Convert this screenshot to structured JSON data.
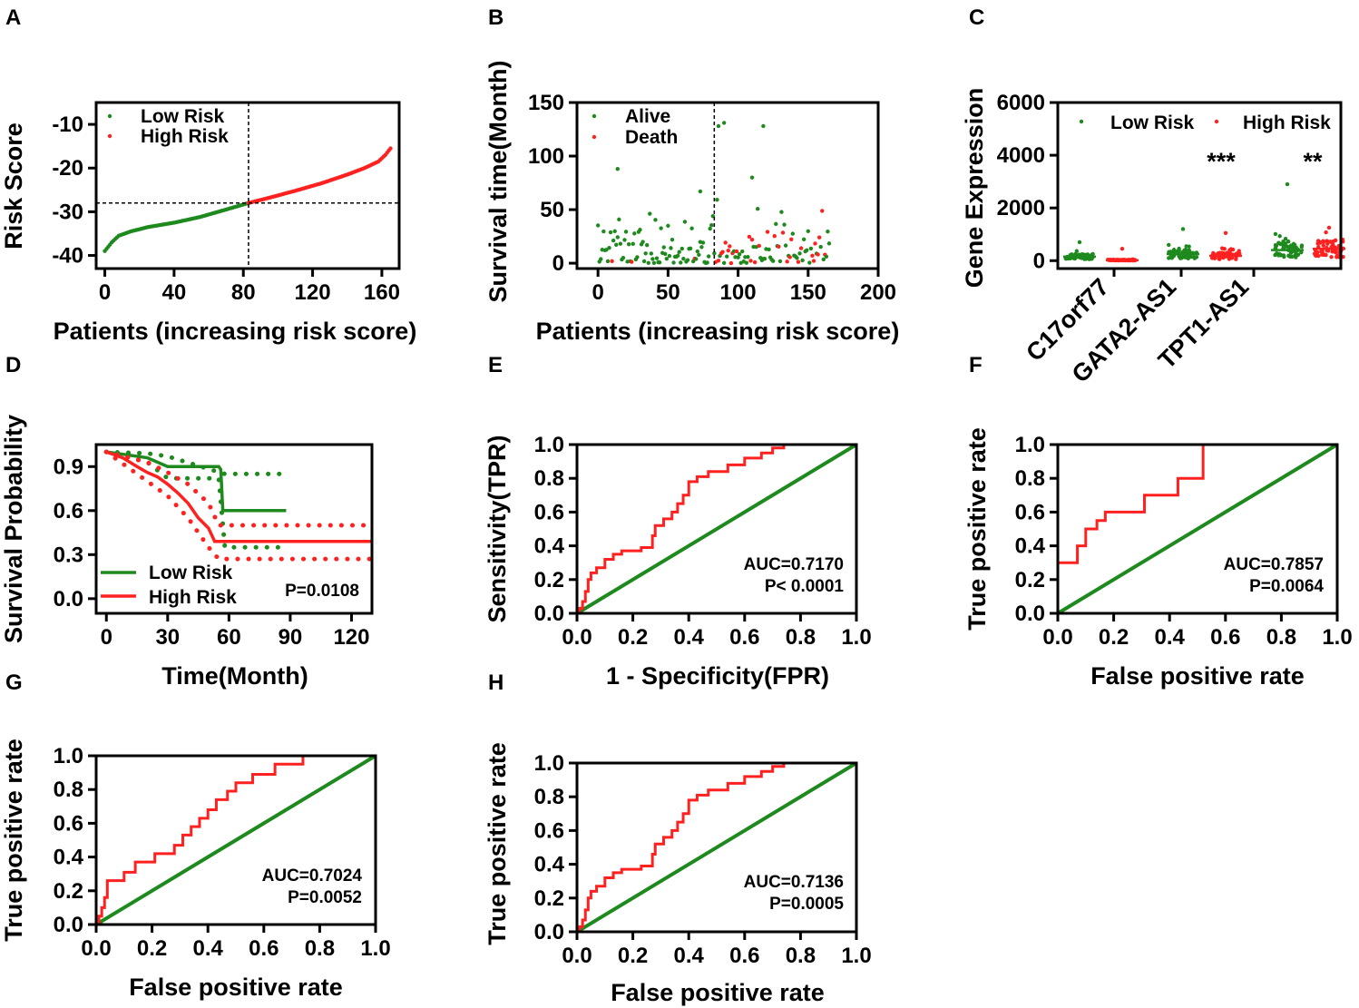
{
  "colors": {
    "low": "#1e8a1e",
    "high": "#ff2020",
    "green_line": "#1e8a1e",
    "axis": "#000000"
  },
  "chart_data": [
    {
      "panel": "A",
      "type": "scatter",
      "xlabel": "Patients (increasing risk score)",
      "ylabel": "Risk Score",
      "xlim": [
        -5,
        170
      ],
      "ylim": [
        -43,
        -5
      ],
      "xticks": [
        0,
        40,
        80,
        120,
        160
      ],
      "yticks": [
        -40,
        -30,
        -20,
        -10
      ],
      "cutoff_x": 83,
      "cutoff_y": -28,
      "legend": [
        {
          "label": "Low Risk",
          "color": "#1e8a1e"
        },
        {
          "label": "High Risk",
          "color": "#ff2020"
        }
      ],
      "curve": [
        [
          0,
          -39
        ],
        [
          4,
          -37
        ],
        [
          8,
          -35.5
        ],
        [
          15,
          -34.5
        ],
        [
          25,
          -33.5
        ],
        [
          40,
          -32.5
        ],
        [
          55,
          -31.2
        ],
        [
          70,
          -29.5
        ],
        [
          83,
          -28
        ],
        [
          95,
          -26.8
        ],
        [
          110,
          -25.2
        ],
        [
          125,
          -23.5
        ],
        [
          140,
          -21.5
        ],
        [
          150,
          -20
        ],
        [
          158,
          -18.5
        ],
        [
          162,
          -17
        ],
        [
          165,
          -15.5
        ]
      ],
      "n_points": 165
    },
    {
      "panel": "B",
      "type": "scatter",
      "xlabel": "Patients (increasing risk score)",
      "ylabel": "Survival time(Month)",
      "xlim": [
        -15,
        200
      ],
      "ylim": [
        -5,
        150
      ],
      "xticks": [
        0,
        50,
        100,
        150,
        200
      ],
      "yticks": [
        0,
        50,
        100,
        150
      ],
      "cutoff_x": 83,
      "legend": [
        {
          "label": "Alive",
          "color": "#1e8a1e"
        },
        {
          "label": "Death",
          "color": "#ff2020"
        }
      ],
      "outliers": [
        {
          "x": 14,
          "y": 88,
          "group": "Alive"
        },
        {
          "x": 73,
          "y": 67,
          "group": "Alive"
        },
        {
          "x": 86,
          "y": 128,
          "group": "Alive"
        },
        {
          "x": 90,
          "y": 131,
          "group": "Alive"
        },
        {
          "x": 110,
          "y": 80,
          "group": "Alive"
        },
        {
          "x": 118,
          "y": 128,
          "group": "Alive"
        }
      ],
      "n_points": 165
    },
    {
      "panel": "C",
      "type": "scatter",
      "ylabel": "Gene Expression",
      "ylim": [
        -300,
        6000
      ],
      "yticks": [
        0,
        2000,
        4000,
        6000
      ],
      "categories": [
        "C17orf77",
        "GATA2-AS1",
        "TPT1-AS1"
      ],
      "legend": [
        {
          "label": "Low Risk",
          "color": "#1e8a1e"
        },
        {
          "label": "High Risk",
          "color": "#ff2020"
        }
      ],
      "significance": [
        {
          "category": "GATA2-AS1",
          "label": "***"
        },
        {
          "category": "TPT1-AS1",
          "label": "**"
        }
      ],
      "series": [
        {
          "name": "Low Risk",
          "category": "C17orf77",
          "median": 150,
          "max": 700
        },
        {
          "name": "High Risk",
          "category": "C17orf77",
          "median": 20,
          "max": 450
        },
        {
          "name": "Low Risk",
          "category": "GATA2-AS1",
          "median": 250,
          "max": 1200
        },
        {
          "name": "High Risk",
          "category": "GATA2-AS1",
          "median": 180,
          "max": 1050
        },
        {
          "name": "Low Risk",
          "category": "TPT1-AS1",
          "median": 400,
          "max": 2900
        },
        {
          "name": "High Risk",
          "category": "TPT1-AS1",
          "median": 450,
          "max": 1250
        }
      ]
    },
    {
      "panel": "D",
      "type": "line",
      "xlabel": "Time(Month)",
      "ylabel": "Survival Probability",
      "xlim": [
        -5,
        130
      ],
      "ylim": [
        -0.1,
        1.05
      ],
      "xticks": [
        0,
        30,
        60,
        90,
        120
      ],
      "yticks": [
        0.0,
        0.3,
        0.6,
        0.9
      ],
      "pvalue": "P=0.0108",
      "series": [
        {
          "name": "Low Risk",
          "color": "#1e8a1e",
          "x": [
            0,
            10,
            20,
            25,
            30,
            55,
            56,
            57,
            58,
            88
          ],
          "y": [
            1.0,
            0.98,
            0.96,
            0.93,
            0.9,
            0.9,
            0.88,
            0.6,
            0.6,
            0.6
          ],
          "ci_upper_x": [
            0,
            20,
            30,
            58,
            88
          ],
          "ci_upper_y": [
            1.0,
            0.99,
            0.97,
            0.85,
            0.85
          ],
          "ci_lower_x": [
            0,
            20,
            30,
            55,
            58,
            85
          ],
          "ci_lower_y": [
            1.0,
            0.93,
            0.82,
            0.82,
            0.35,
            0.35
          ]
        },
        {
          "name": "High Risk",
          "color": "#ff2020",
          "x": [
            0,
            8,
            15,
            20,
            25,
            30,
            35,
            40,
            45,
            50,
            53,
            130
          ],
          "y": [
            1.0,
            0.96,
            0.9,
            0.86,
            0.83,
            0.78,
            0.72,
            0.65,
            0.55,
            0.48,
            0.39,
            0.39
          ],
          "ci_upper_x": [
            0,
            20,
            30,
            40,
            50,
            55,
            130
          ],
          "ci_upper_y": [
            1.0,
            0.93,
            0.86,
            0.78,
            0.65,
            0.5,
            0.5
          ],
          "ci_lower_x": [
            0,
            20,
            30,
            40,
            50,
            55,
            130
          ],
          "ci_lower_y": [
            1.0,
            0.8,
            0.7,
            0.55,
            0.35,
            0.27,
            0.27
          ]
        }
      ]
    },
    {
      "panel": "E",
      "type": "line",
      "xlabel": "1 - Specificity(FPR)",
      "ylabel": "Sensitivity(TPR)",
      "xlim": [
        0,
        1
      ],
      "ylim": [
        0,
        1
      ],
      "ticks": [
        0.0,
        0.2,
        0.4,
        0.6,
        0.8,
        1.0
      ],
      "auc": "AUC=0.7170",
      "pvalue": "P< 0.0001",
      "roc": [
        [
          0,
          0
        ],
        [
          0.01,
          0
        ],
        [
          0.01,
          0.03
        ],
        [
          0.02,
          0.03
        ],
        [
          0.02,
          0.07
        ],
        [
          0.03,
          0.07
        ],
        [
          0.03,
          0.13
        ],
        [
          0.04,
          0.13
        ],
        [
          0.04,
          0.2
        ],
        [
          0.05,
          0.2
        ],
        [
          0.05,
          0.24
        ],
        [
          0.07,
          0.24
        ],
        [
          0.07,
          0.27
        ],
        [
          0.1,
          0.27
        ],
        [
          0.1,
          0.32
        ],
        [
          0.13,
          0.32
        ],
        [
          0.13,
          0.35
        ],
        [
          0.16,
          0.35
        ],
        [
          0.16,
          0.37
        ],
        [
          0.23,
          0.37
        ],
        [
          0.23,
          0.39
        ],
        [
          0.27,
          0.39
        ],
        [
          0.27,
          0.46
        ],
        [
          0.28,
          0.46
        ],
        [
          0.28,
          0.52
        ],
        [
          0.31,
          0.52
        ],
        [
          0.31,
          0.56
        ],
        [
          0.34,
          0.56
        ],
        [
          0.34,
          0.6
        ],
        [
          0.36,
          0.6
        ],
        [
          0.36,
          0.65
        ],
        [
          0.38,
          0.65
        ],
        [
          0.38,
          0.7
        ],
        [
          0.4,
          0.7
        ],
        [
          0.4,
          0.78
        ],
        [
          0.43,
          0.78
        ],
        [
          0.43,
          0.81
        ],
        [
          0.47,
          0.81
        ],
        [
          0.47,
          0.84
        ],
        [
          0.54,
          0.84
        ],
        [
          0.54,
          0.88
        ],
        [
          0.6,
          0.88
        ],
        [
          0.6,
          0.92
        ],
        [
          0.66,
          0.92
        ],
        [
          0.66,
          0.95
        ],
        [
          0.7,
          0.95
        ],
        [
          0.7,
          0.98
        ],
        [
          0.74,
          0.98
        ],
        [
          0.74,
          1.0
        ],
        [
          1,
          1
        ]
      ]
    },
    {
      "panel": "F",
      "type": "line",
      "xlabel": "False positive rate",
      "ylabel": "True positive rate",
      "xlim": [
        0,
        1
      ],
      "ylim": [
        0,
        1
      ],
      "ticks": [
        0.0,
        0.2,
        0.4,
        0.6,
        0.8,
        1.0
      ],
      "auc": "AUC=0.7857",
      "pvalue": "P=0.0064",
      "roc": [
        [
          0,
          0
        ],
        [
          0,
          0.3
        ],
        [
          0.07,
          0.3
        ],
        [
          0.07,
          0.4
        ],
        [
          0.1,
          0.4
        ],
        [
          0.1,
          0.5
        ],
        [
          0.14,
          0.5
        ],
        [
          0.14,
          0.55
        ],
        [
          0.17,
          0.55
        ],
        [
          0.17,
          0.6
        ],
        [
          0.31,
          0.6
        ],
        [
          0.31,
          0.7
        ],
        [
          0.43,
          0.7
        ],
        [
          0.43,
          0.8
        ],
        [
          0.52,
          0.8
        ],
        [
          0.52,
          1.0
        ],
        [
          1,
          1
        ]
      ]
    },
    {
      "panel": "G",
      "type": "line",
      "xlabel": "False positive rate",
      "ylabel": "True positive rate",
      "xlim": [
        0,
        1
      ],
      "ylim": [
        0,
        1
      ],
      "ticks": [
        0.0,
        0.2,
        0.4,
        0.6,
        0.8,
        1.0
      ],
      "auc": "AUC=0.7024",
      "pvalue": "P=0.0052",
      "roc": [
        [
          0,
          0
        ],
        [
          0.01,
          0
        ],
        [
          0.01,
          0.05
        ],
        [
          0.02,
          0.05
        ],
        [
          0.02,
          0.1
        ],
        [
          0.03,
          0.1
        ],
        [
          0.03,
          0.16
        ],
        [
          0.04,
          0.16
        ],
        [
          0.04,
          0.26
        ],
        [
          0.1,
          0.26
        ],
        [
          0.1,
          0.31
        ],
        [
          0.14,
          0.31
        ],
        [
          0.14,
          0.37
        ],
        [
          0.21,
          0.37
        ],
        [
          0.21,
          0.42
        ],
        [
          0.28,
          0.42
        ],
        [
          0.28,
          0.47
        ],
        [
          0.31,
          0.47
        ],
        [
          0.31,
          0.53
        ],
        [
          0.34,
          0.53
        ],
        [
          0.34,
          0.58
        ],
        [
          0.37,
          0.58
        ],
        [
          0.37,
          0.63
        ],
        [
          0.4,
          0.63
        ],
        [
          0.4,
          0.68
        ],
        [
          0.43,
          0.68
        ],
        [
          0.43,
          0.74
        ],
        [
          0.47,
          0.74
        ],
        [
          0.47,
          0.79
        ],
        [
          0.5,
          0.79
        ],
        [
          0.5,
          0.84
        ],
        [
          0.56,
          0.84
        ],
        [
          0.56,
          0.89
        ],
        [
          0.64,
          0.89
        ],
        [
          0.64,
          0.95
        ],
        [
          0.74,
          0.95
        ],
        [
          0.74,
          1.0
        ],
        [
          1,
          1
        ]
      ]
    },
    {
      "panel": "H",
      "type": "line",
      "xlabel": "False positive rate",
      "ylabel": "True positive rate",
      "xlim": [
        0,
        1
      ],
      "ylim": [
        0,
        1
      ],
      "ticks": [
        0.0,
        0.2,
        0.4,
        0.6,
        0.8,
        1.0
      ],
      "auc": "AUC=0.7136",
      "pvalue": "P=0.0005",
      "roc": [
        [
          0,
          0
        ],
        [
          0.01,
          0
        ],
        [
          0.01,
          0.03
        ],
        [
          0.02,
          0.03
        ],
        [
          0.02,
          0.07
        ],
        [
          0.03,
          0.07
        ],
        [
          0.03,
          0.13
        ],
        [
          0.04,
          0.13
        ],
        [
          0.04,
          0.2
        ],
        [
          0.05,
          0.2
        ],
        [
          0.05,
          0.24
        ],
        [
          0.07,
          0.24
        ],
        [
          0.07,
          0.27
        ],
        [
          0.1,
          0.27
        ],
        [
          0.1,
          0.32
        ],
        [
          0.13,
          0.32
        ],
        [
          0.13,
          0.35
        ],
        [
          0.16,
          0.35
        ],
        [
          0.16,
          0.37
        ],
        [
          0.23,
          0.37
        ],
        [
          0.23,
          0.39
        ],
        [
          0.27,
          0.39
        ],
        [
          0.27,
          0.46
        ],
        [
          0.28,
          0.46
        ],
        [
          0.28,
          0.52
        ],
        [
          0.31,
          0.52
        ],
        [
          0.31,
          0.56
        ],
        [
          0.34,
          0.56
        ],
        [
          0.34,
          0.6
        ],
        [
          0.36,
          0.6
        ],
        [
          0.36,
          0.65
        ],
        [
          0.38,
          0.65
        ],
        [
          0.38,
          0.7
        ],
        [
          0.4,
          0.7
        ],
        [
          0.4,
          0.78
        ],
        [
          0.43,
          0.78
        ],
        [
          0.43,
          0.81
        ],
        [
          0.47,
          0.81
        ],
        [
          0.47,
          0.84
        ],
        [
          0.54,
          0.84
        ],
        [
          0.54,
          0.88
        ],
        [
          0.6,
          0.88
        ],
        [
          0.6,
          0.92
        ],
        [
          0.66,
          0.92
        ],
        [
          0.66,
          0.95
        ],
        [
          0.7,
          0.95
        ],
        [
          0.7,
          0.98
        ],
        [
          0.74,
          0.98
        ],
        [
          0.74,
          1.0
        ],
        [
          1,
          1
        ]
      ]
    }
  ]
}
